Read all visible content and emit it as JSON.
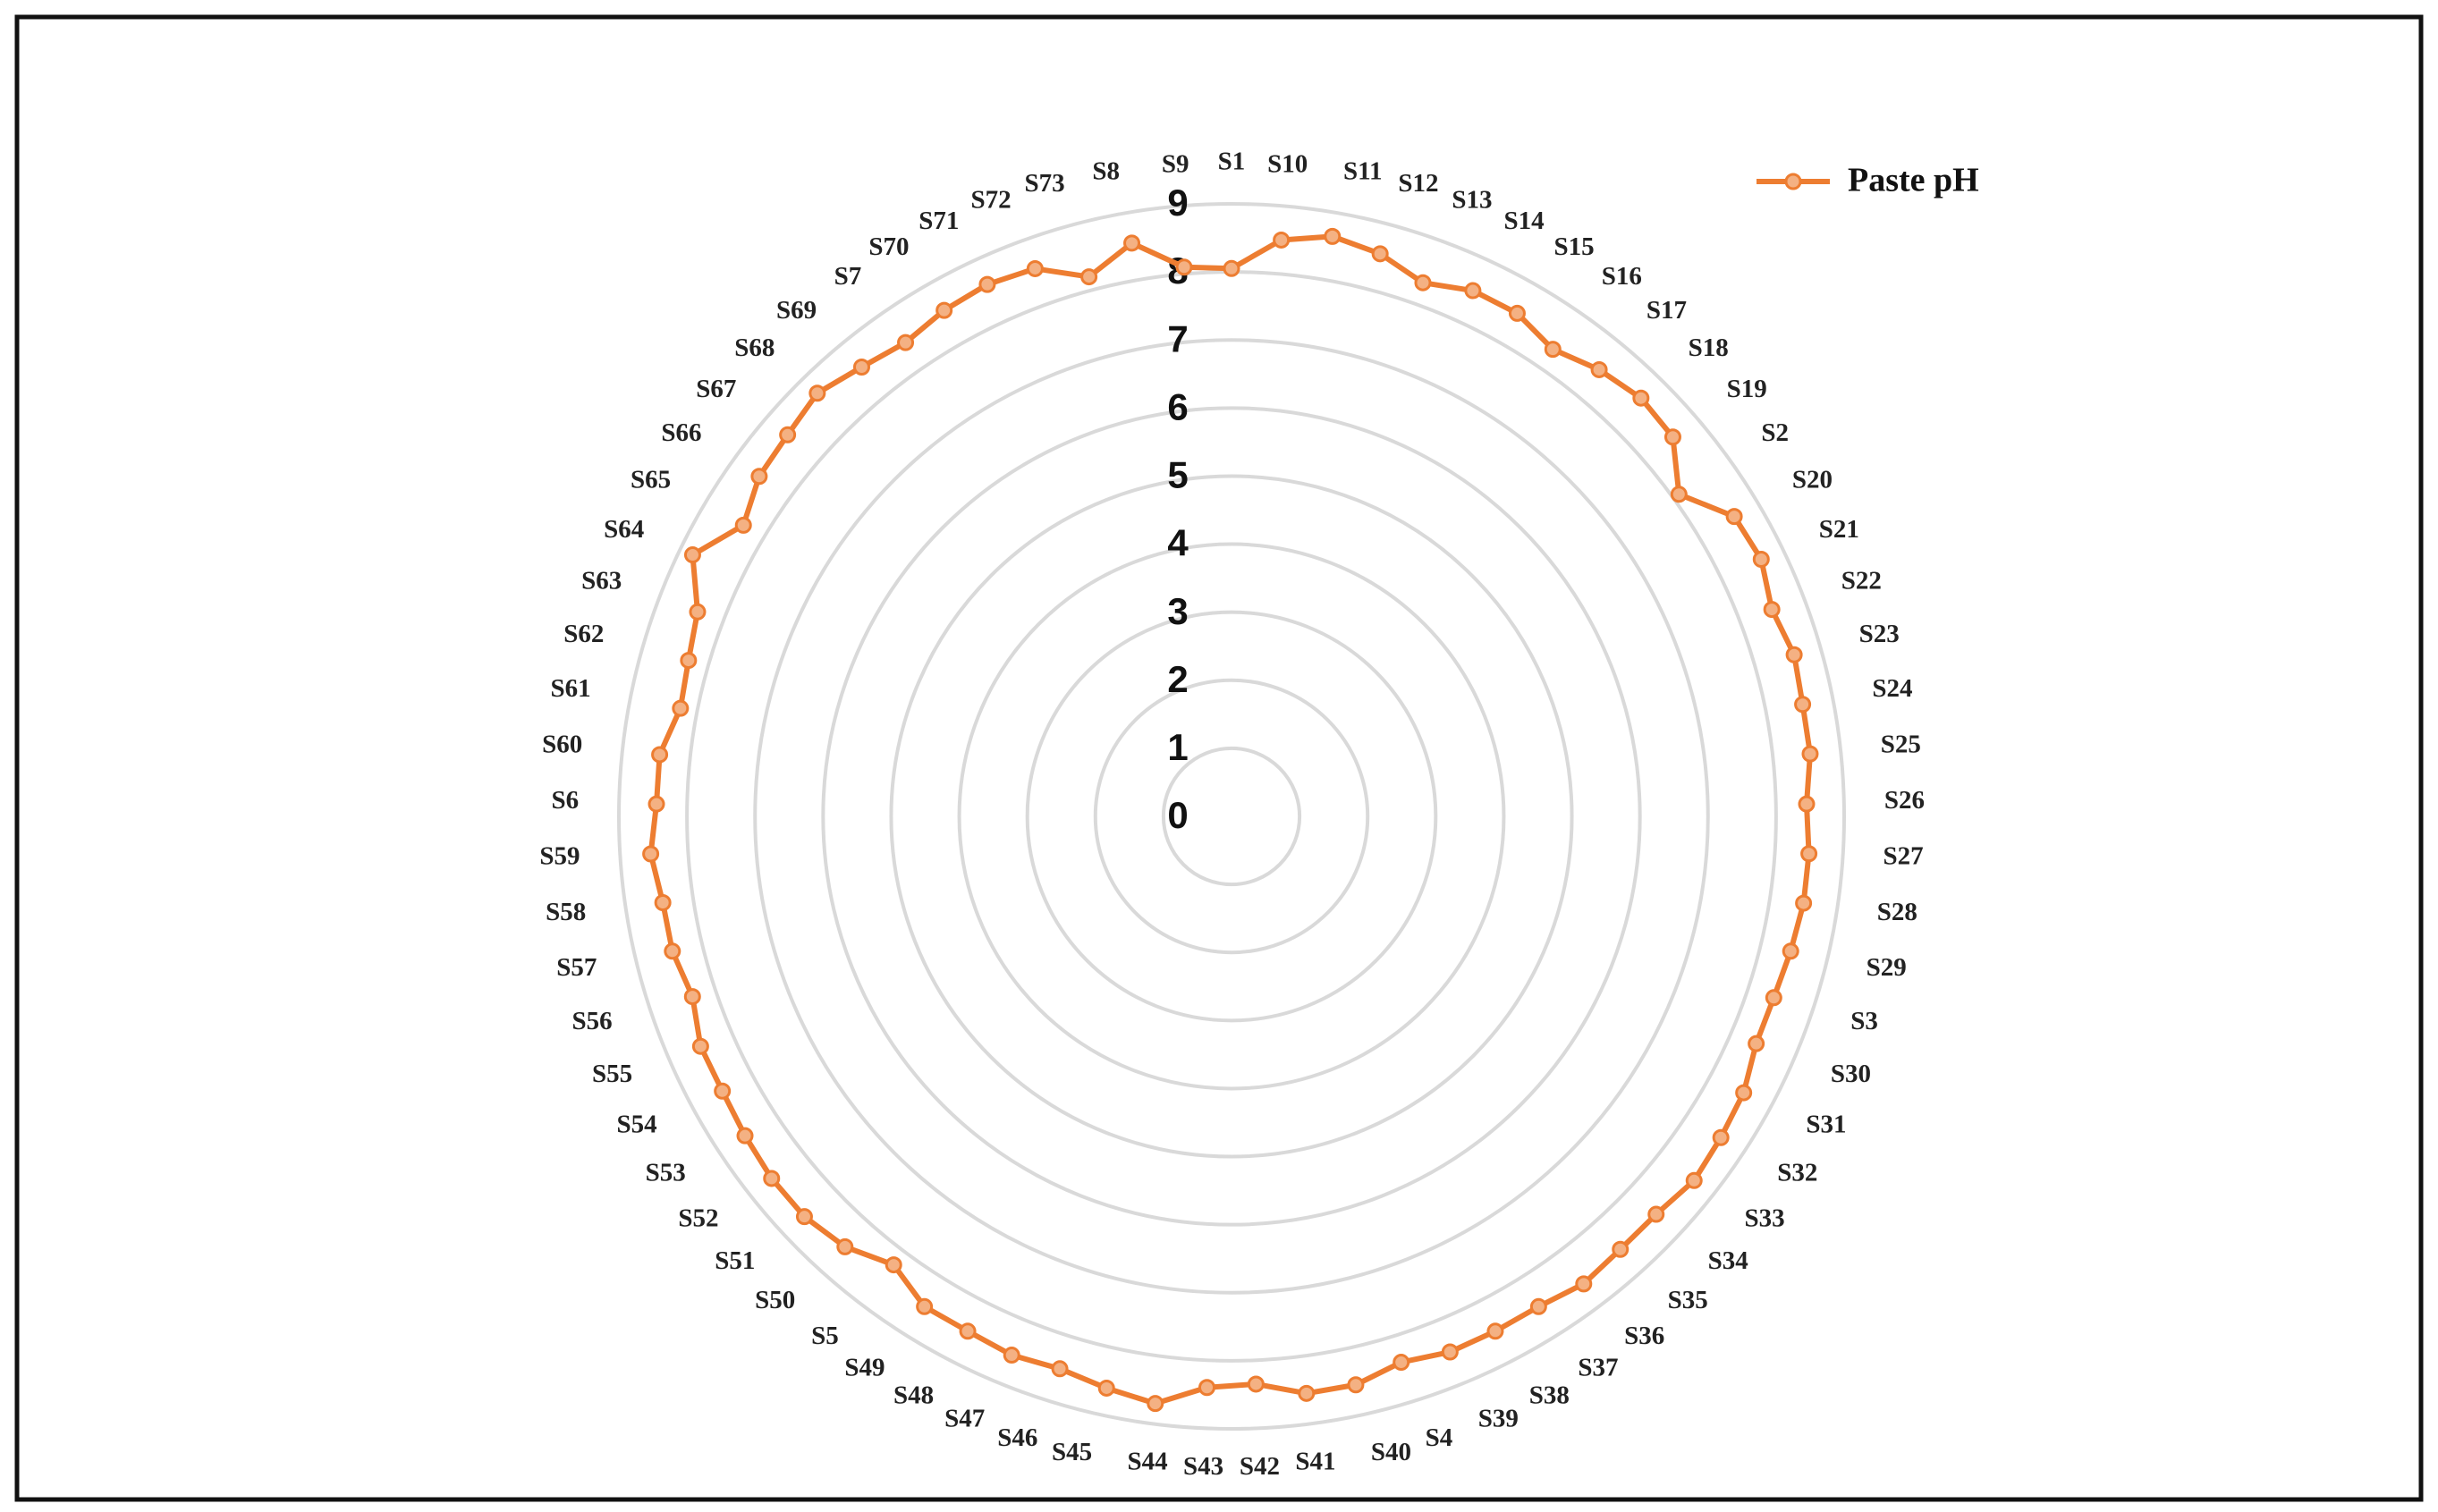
{
  "chart_data": {
    "type": "radar",
    "categories": [
      "S1",
      "S10",
      "S11",
      "S12",
      "S13",
      "S14",
      "S15",
      "S16",
      "S17",
      "S18",
      "S19",
      "S2",
      "S20",
      "S21",
      "S22",
      "S23",
      "S24",
      "S25",
      "S26",
      "S27",
      "S28",
      "S29",
      "S3",
      "S30",
      "S31",
      "S32",
      "S33",
      "S34",
      "S35",
      "S36",
      "S37",
      "S38",
      "S39",
      "S4",
      "S40",
      "S41",
      "S42",
      "S43",
      "S44",
      "S45",
      "S46",
      "S47",
      "S48",
      "S49",
      "S5",
      "S50",
      "S51",
      "S52",
      "S53",
      "S54",
      "S55",
      "S56",
      "S57",
      "S58",
      "S59",
      "S6",
      "S60",
      "S61",
      "S62",
      "S63",
      "S64",
      "S65",
      "S66",
      "S67",
      "S68",
      "S69",
      "S7",
      "S70",
      "S71",
      "S72",
      "S73",
      "S8",
      "S9"
    ],
    "series": [
      {
        "name": "Paste pH",
        "color": "#ed7d31",
        "marker_fill": "#f4b183",
        "values": [
          8.05,
          8.5,
          8.65,
          8.55,
          8.33,
          8.5,
          8.5,
          8.33,
          8.5,
          8.6,
          8.55,
          8.1,
          8.6,
          8.65,
          8.5,
          8.6,
          8.55,
          8.55,
          8.45,
          8.5,
          8.5,
          8.45,
          8.4,
          8.4,
          8.55,
          8.6,
          8.65,
          8.55,
          8.55,
          8.6,
          8.5,
          8.5,
          8.5,
          8.4,
          8.55,
          8.55,
          8.35,
          8.4,
          8.7,
          8.6,
          8.5,
          8.55,
          8.5,
          8.5,
          8.25,
          8.5,
          8.6,
          8.6,
          8.55,
          8.5,
          8.5,
          8.35,
          8.45,
          8.45,
          8.55,
          8.45,
          8.45,
          8.25,
          8.3,
          8.4,
          8.8,
          8.35,
          8.55,
          8.6,
          8.7,
          8.55,
          8.45,
          8.55,
          8.6,
          8.55,
          8.2,
          8.55,
          8.1
        ]
      }
    ],
    "ylim": [
      0,
      9
    ],
    "yticks": [
      0,
      1,
      2,
      3,
      4,
      5,
      6,
      7,
      8,
      9
    ],
    "grid": true,
    "legend": "top-right"
  }
}
